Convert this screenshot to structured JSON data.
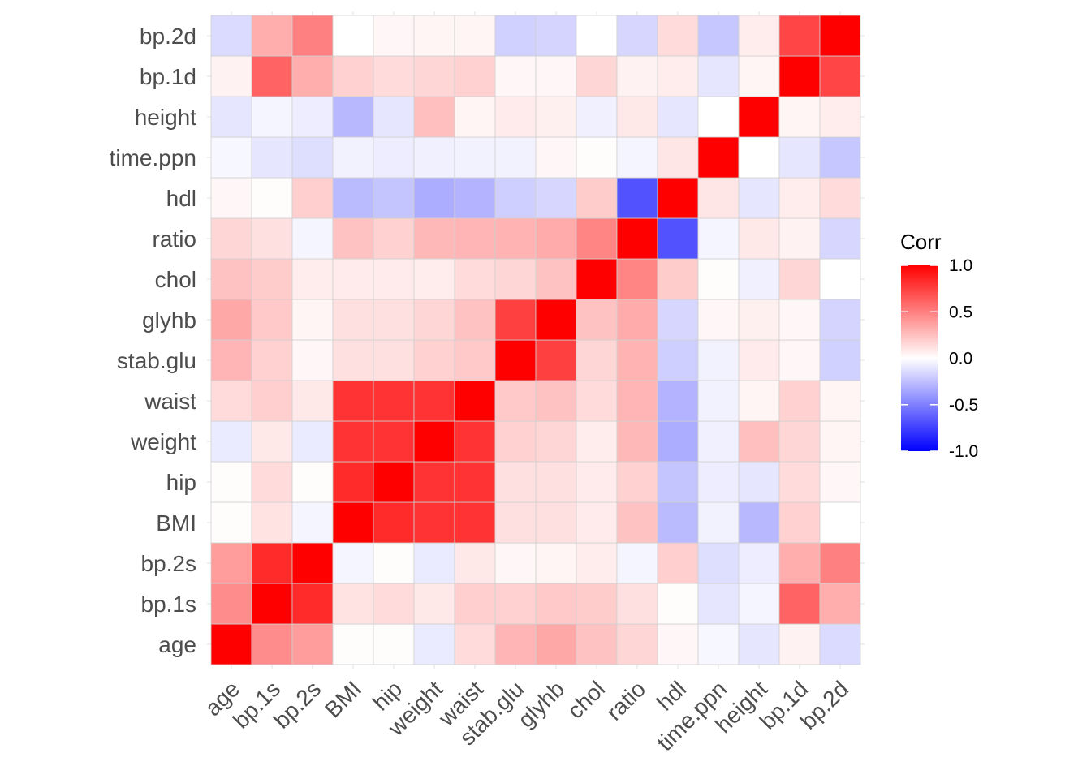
{
  "chart_data": {
    "type": "heatmap",
    "variables": [
      "age",
      "bp.1s",
      "bp.2s",
      "BMI",
      "hip",
      "weight",
      "waist",
      "stab.glu",
      "glyhb",
      "chol",
      "ratio",
      "hdl",
      "time.ppn",
      "height",
      "bp.1d",
      "bp.2d"
    ],
    "matrix": [
      [
        1.0,
        0.45,
        0.39,
        0.01,
        0.01,
        -0.08,
        0.14,
        0.29,
        0.34,
        0.24,
        0.16,
        0.03,
        -0.03,
        -0.1,
        0.05,
        -0.14
      ],
      [
        0.45,
        1.0,
        0.83,
        0.11,
        0.14,
        0.09,
        0.19,
        0.18,
        0.21,
        0.2,
        0.12,
        0.01,
        -0.1,
        -0.04,
        0.61,
        0.32
      ],
      [
        0.39,
        0.83,
        1.0,
        -0.04,
        0.01,
        -0.08,
        0.09,
        0.03,
        0.04,
        0.07,
        -0.04,
        0.19,
        -0.13,
        -0.07,
        0.32,
        0.5
      ],
      [
        0.01,
        0.11,
        -0.04,
        1.0,
        0.83,
        0.8,
        0.8,
        0.12,
        0.12,
        0.08,
        0.24,
        -0.27,
        -0.05,
        -0.28,
        0.18,
        0.0
      ],
      [
        0.01,
        0.14,
        0.01,
        0.83,
        1.0,
        0.8,
        0.8,
        0.12,
        0.12,
        0.08,
        0.18,
        -0.23,
        -0.07,
        -0.1,
        0.14,
        0.03
      ],
      [
        -0.08,
        0.09,
        -0.08,
        0.8,
        0.8,
        1.0,
        0.8,
        0.18,
        0.16,
        0.07,
        0.28,
        -0.32,
        -0.06,
        0.25,
        0.16,
        0.04
      ],
      [
        0.14,
        0.19,
        0.09,
        0.8,
        0.8,
        0.8,
        1.0,
        0.21,
        0.24,
        0.14,
        0.29,
        -0.3,
        -0.05,
        0.04,
        0.18,
        0.04
      ],
      [
        0.29,
        0.18,
        0.03,
        0.12,
        0.12,
        0.18,
        0.21,
        1.0,
        0.75,
        0.16,
        0.3,
        -0.19,
        -0.05,
        0.08,
        0.03,
        -0.18
      ],
      [
        0.34,
        0.21,
        0.04,
        0.12,
        0.12,
        0.16,
        0.24,
        0.75,
        1.0,
        0.24,
        0.33,
        -0.16,
        0.03,
        0.06,
        0.03,
        -0.17
      ],
      [
        0.24,
        0.2,
        0.07,
        0.08,
        0.08,
        0.07,
        0.14,
        0.16,
        0.24,
        1.0,
        0.48,
        0.2,
        0.01,
        -0.06,
        0.16,
        0.0
      ],
      [
        0.16,
        0.12,
        -0.04,
        0.24,
        0.18,
        0.28,
        0.29,
        0.3,
        0.33,
        0.48,
        1.0,
        -0.68,
        -0.04,
        0.09,
        0.05,
        -0.16
      ],
      [
        0.03,
        0.01,
        0.19,
        -0.27,
        -0.23,
        -0.32,
        -0.3,
        -0.19,
        -0.16,
        0.2,
        -0.68,
        1.0,
        0.1,
        -0.1,
        0.07,
        0.14
      ],
      [
        -0.03,
        -0.1,
        -0.13,
        -0.05,
        -0.07,
        -0.06,
        -0.05,
        -0.05,
        0.03,
        0.01,
        -0.04,
        0.1,
        1.0,
        0.0,
        -0.1,
        -0.22
      ],
      [
        -0.1,
        -0.04,
        -0.07,
        -0.28,
        -0.1,
        0.25,
        0.04,
        0.08,
        0.06,
        -0.06,
        0.09,
        -0.1,
        0.0,
        1.0,
        0.04,
        0.07
      ],
      [
        0.05,
        0.61,
        0.32,
        0.18,
        0.14,
        0.16,
        0.18,
        0.03,
        0.03,
        0.16,
        0.05,
        0.07,
        -0.1,
        0.04,
        1.0,
        0.73
      ],
      [
        -0.14,
        0.32,
        0.5,
        0.0,
        0.03,
        0.04,
        0.04,
        -0.18,
        -0.17,
        0.0,
        -0.16,
        0.14,
        -0.22,
        0.07,
        0.73,
        1.0
      ]
    ],
    "value_range": [
      -1,
      1
    ],
    "colors": {
      "low": "#0000ff",
      "mid": "#ffffff",
      "high": "#ff0000",
      "cell_border": "#d0d0d0",
      "grid": "#ebebeb",
      "tick_text": "#4d4d4d"
    },
    "legend": {
      "title": "Corr",
      "placement": "right",
      "breaks": [
        1.0,
        0.5,
        0.0,
        -0.5,
        -1.0
      ],
      "labels": [
        "1.0",
        "0.5",
        "0.0",
        "-0.5",
        "-1.0"
      ]
    },
    "grid": true,
    "xlabel": "",
    "ylabel": "",
    "title": ""
  }
}
